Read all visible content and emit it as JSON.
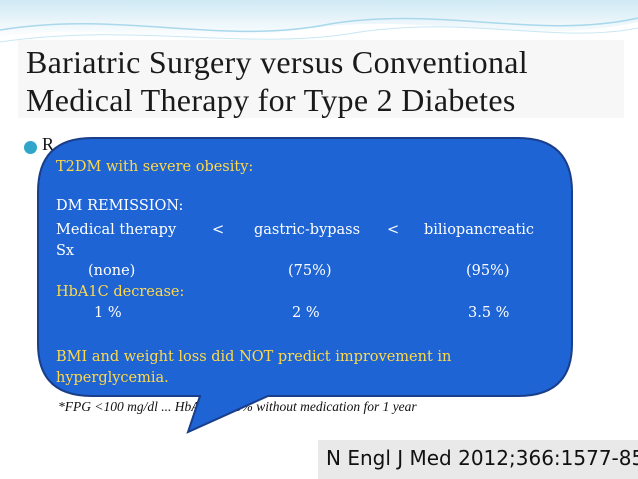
{
  "slide": {
    "title_line1": "Bariatric Surgery versus Conventional",
    "title_line2": "Medical Therapy for Type 2 Diabetes",
    "bullet_text": "R",
    "footnote": "*FPG <100 mg/dl ... HbA1c <6.5% without medication for 1 year",
    "citation": "N Engl J Med 2012;366:1577-85."
  },
  "callout": {
    "heading": "T2DM with severe obesity:",
    "remission_label": "DM REMISSION:",
    "col1": "Medical therapy",
    "lt1": "<",
    "col2": "gastric-bypass",
    "lt2": "<",
    "col3": "biliopancreatic",
    "col3_cont": "Sx",
    "rem1": "(none)",
    "rem2": "(75%)",
    "rem3": "(95%)",
    "hba1c_label": "HbA1C  decrease:",
    "hb1": "1 %",
    "hb2": "2 %",
    "hb3": "3.5 %",
    "conclusion_line1": "BMI and weight loss did NOT predict improvement in",
    "conclusion_line2": "hyperglycemia."
  },
  "colors": {
    "callout_fill": "#1e64d4",
    "callout_stroke": "#1a3e8a",
    "accent": "#2fa6c9",
    "highlight_text": "#ffd94a"
  }
}
